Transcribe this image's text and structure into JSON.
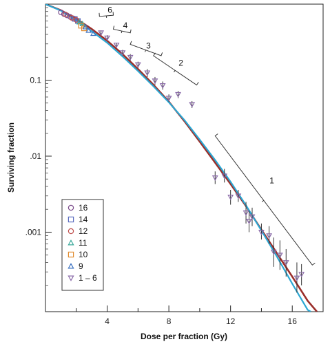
{
  "chart_data": {
    "type": "scatter",
    "title": "",
    "xlabel": "Dose per fraction (Gy)",
    "ylabel": "Surviving fraction",
    "x_range": [
      0,
      18
    ],
    "y_range": [
      9e-05,
      1.0
    ],
    "y_scale": "log",
    "x_ticks": [
      4,
      8,
      12,
      16
    ],
    "x_tick_labels": [
      "4",
      "8",
      "12",
      "16"
    ],
    "y_ticks": [
      0.1,
      0.01,
      0.001
    ],
    "y_tick_labels": [
      "0.1",
      ".01",
      ".001"
    ],
    "grid": false,
    "legend_position": "bottom-left",
    "curves": [
      {
        "color": "#9b2f2a",
        "x": [
          0,
          1,
          2,
          3,
          4,
          5,
          6,
          7,
          8,
          9,
          10,
          11,
          12,
          13,
          14,
          15,
          16,
          17,
          17.6
        ],
        "y": [
          1.0,
          0.83,
          0.64,
          0.47,
          0.33,
          0.22,
          0.14,
          0.087,
          0.052,
          0.029,
          0.0155,
          0.0082,
          0.0043,
          0.0022,
          0.00108,
          0.00053,
          0.00026,
          0.000125,
          9e-05
        ]
      },
      {
        "color": "#2ba7d3",
        "x": [
          0,
          1,
          2,
          3,
          4,
          5,
          6,
          7,
          8,
          9,
          10,
          11,
          12,
          13,
          14,
          15,
          16,
          17,
          17.2
        ],
        "y": [
          1.0,
          0.82,
          0.61,
          0.44,
          0.31,
          0.205,
          0.132,
          0.083,
          0.051,
          0.03,
          0.0165,
          0.0089,
          0.0046,
          0.00225,
          0.00105,
          0.00048,
          0.00021,
          9.5e-05,
          9e-05
        ]
      }
    ],
    "series": [
      {
        "name": "16",
        "marker": "circle",
        "color": "#7a4a8a",
        "points": [
          [
            1.0,
            0.78
          ],
          [
            1.2,
            0.74
          ],
          [
            1.4,
            0.71
          ],
          [
            1.6,
            0.68
          ],
          [
            1.8,
            0.65
          ]
        ]
      },
      {
        "name": "14",
        "marker": "square",
        "color": "#5a6cbf",
        "points": [
          [
            1.9,
            0.64
          ],
          [
            2.1,
            0.6
          ]
        ]
      },
      {
        "name": "12",
        "marker": "circle",
        "color": "#c0504d",
        "points": [
          [
            1.3,
            0.73
          ],
          [
            1.7,
            0.66
          ],
          [
            2.0,
            0.62
          ]
        ]
      },
      {
        "name": "11",
        "marker": "triangle-up",
        "color": "#3aa89a",
        "points": [
          [
            2.2,
            0.58
          ],
          [
            2.4,
            0.55
          ]
        ]
      },
      {
        "name": "10",
        "marker": "square",
        "color": "#e08a2e",
        "points": [
          [
            2.3,
            0.52
          ],
          [
            2.5,
            0.48
          ]
        ]
      },
      {
        "name": "9",
        "marker": "triangle-up",
        "color": "#3a70c0",
        "points": [
          [
            2.6,
            0.5
          ],
          [
            2.8,
            0.45
          ],
          [
            3.1,
            0.41
          ]
        ]
      },
      {
        "name": "1 – 6",
        "marker": "triangle-down",
        "color": "#8a6aa8",
        "points": [
          [
            3.6,
            0.42,
            0.39,
            0.45
          ],
          [
            4.0,
            0.36,
            0.34,
            0.39
          ],
          [
            4.6,
            0.29,
            0.27,
            0.31
          ],
          [
            5.0,
            0.23,
            0.21,
            0.25
          ],
          [
            5.5,
            0.2,
            0.18,
            0.22
          ],
          [
            6.0,
            0.16,
            0.145,
            0.175
          ],
          [
            6.6,
            0.125,
            0.11,
            0.14
          ],
          [
            7.1,
            0.098,
            0.087,
            0.11
          ],
          [
            7.6,
            0.085,
            0.075,
            0.096
          ],
          [
            8.0,
            0.058,
            0.052,
            0.065
          ],
          [
            8.6,
            0.065,
            0.058,
            0.072
          ],
          [
            9.5,
            0.048,
            0.043,
            0.053
          ],
          [
            11.0,
            0.0052,
            0.0043,
            0.0063
          ],
          [
            11.6,
            0.0055,
            0.0045,
            0.0068
          ],
          [
            12.0,
            0.0029,
            0.0023,
            0.0036
          ],
          [
            12.5,
            0.003,
            0.0025,
            0.0036
          ],
          [
            13.0,
            0.0018,
            0.0013,
            0.0025
          ],
          [
            13.2,
            0.0014,
            0.001,
            0.0019
          ],
          [
            13.4,
            0.0016,
            0.0012,
            0.0021
          ],
          [
            14.0,
            0.001,
            0.0008,
            0.0013
          ],
          [
            14.5,
            0.0009,
            0.0007,
            0.0012
          ],
          [
            14.8,
            0.00055,
            0.00035,
            0.00085
          ],
          [
            15.2,
            0.0005,
            0.00032,
            0.00078
          ],
          [
            15.6,
            0.0004,
            0.00026,
            0.0006
          ],
          [
            16.3,
            0.00025,
            0.00016,
            0.0004
          ],
          [
            16.6,
            0.00028,
            0.0002,
            0.00038
          ]
        ]
      }
    ],
    "annotations": [
      {
        "text": "6",
        "bracket": [
          [
            3.5,
            0.56
          ],
          [
            4.4,
            0.58
          ]
        ],
        "label_at": [
          4.0,
          0.77
        ]
      },
      {
        "text": "4",
        "bracket": [
          [
            4.4,
            0.38
          ],
          [
            5.5,
            0.34
          ]
        ],
        "label_at": [
          5.0,
          0.48
        ]
      },
      {
        "text": "3",
        "bracket": [
          [
            5.5,
            0.24
          ],
          [
            7.5,
            0.17
          ]
        ],
        "label_at": [
          6.5,
          0.26
        ]
      },
      {
        "text": "2",
        "bracket": [
          [
            7.0,
            0.17
          ],
          [
            9.8,
            0.07
          ]
        ],
        "label_at": [
          8.6,
          0.155
        ]
      },
      {
        "text": "1",
        "bracket": [
          [
            11.0,
            0.015
          ],
          [
            17.3,
            0.0003
          ]
        ],
        "label_at": [
          14.5,
          0.0044
        ]
      }
    ]
  }
}
